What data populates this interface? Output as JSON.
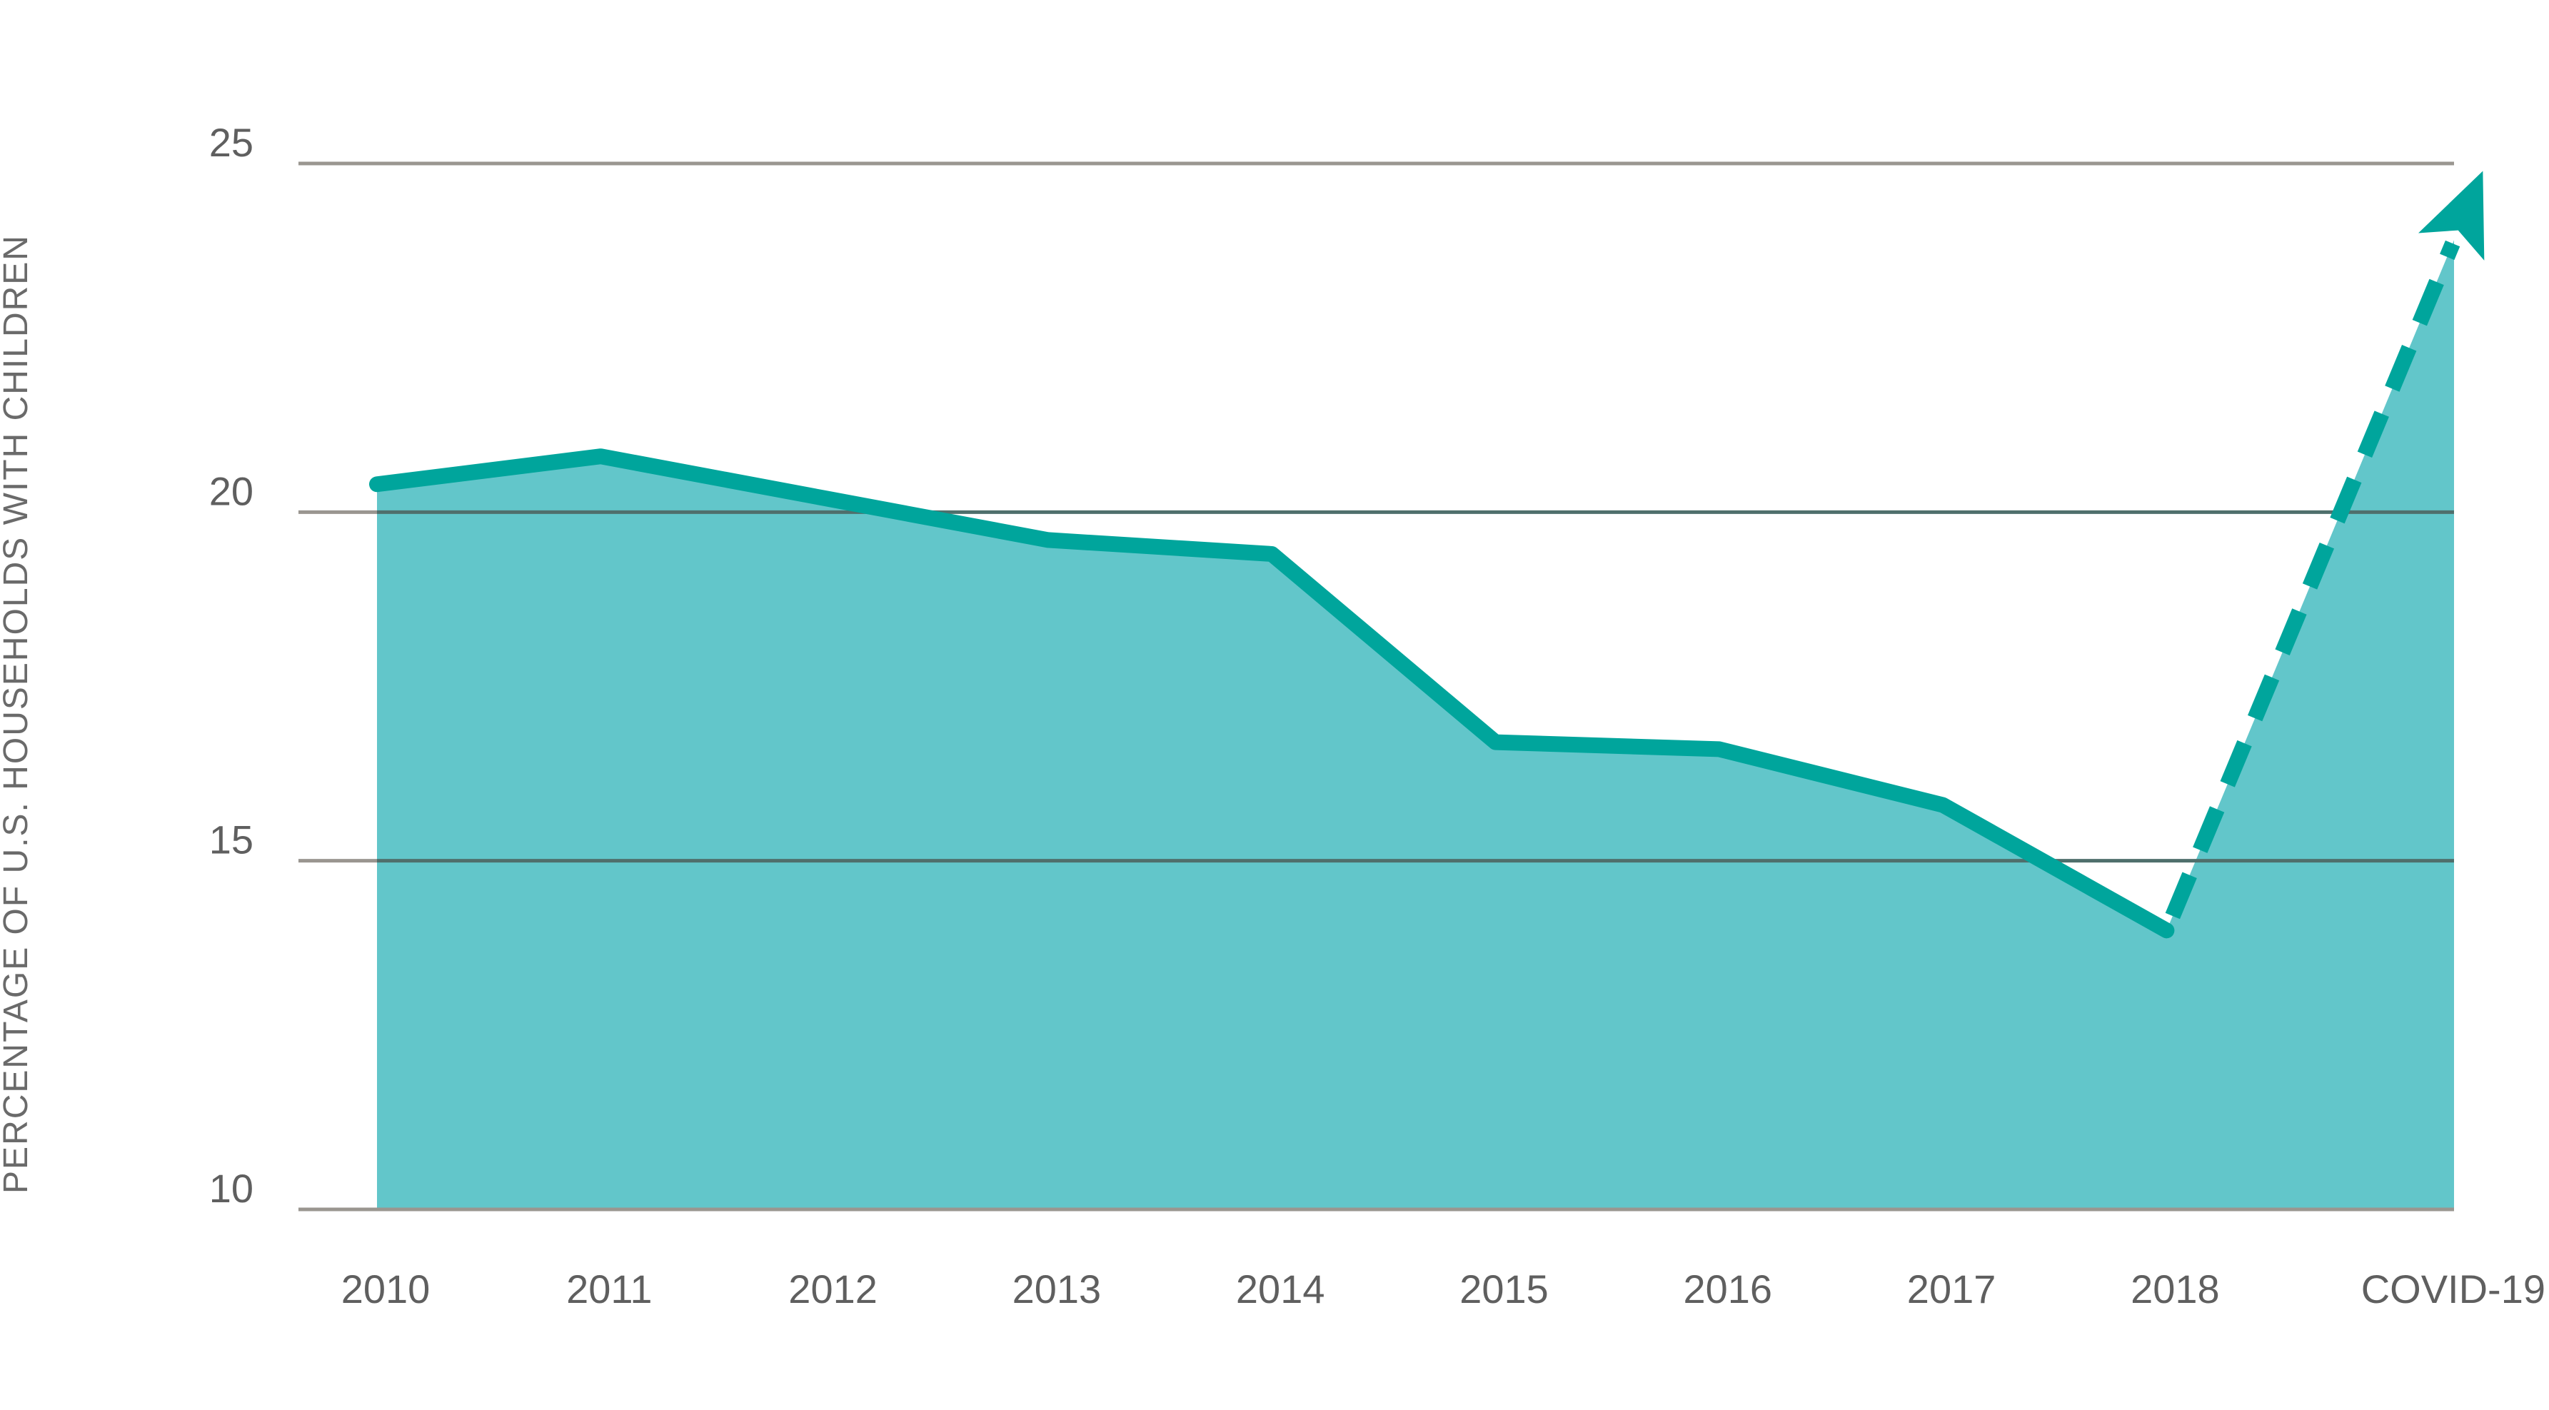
{
  "chart_data": {
    "type": "area",
    "ylabel": "PERCENTAGE OF U.S. HOUSEHOLDS WITH CHILDREN",
    "xlabel": "",
    "categories": [
      "2010",
      "2011",
      "2012",
      "2013",
      "2014",
      "2015",
      "2016",
      "2017",
      "2018",
      "COVID-19"
    ],
    "series": [
      {
        "values": [
          20.4,
          20.8,
          20.2,
          19.6,
          19.4,
          16.7,
          16.6,
          15.8,
          14.0,
          23.9
        ],
        "projected_from_index": 8
      }
    ],
    "yticks": [
      10,
      15,
      20,
      25
    ],
    "ylim": [
      10,
      25
    ],
    "grid": true,
    "legend": "none",
    "colors": {
      "area_fill": "#62c6ca",
      "line": "#00a59c",
      "grid_light": "#9a9690",
      "grid_dark": "#4f6f6c",
      "tick_text": "#5f5f5f"
    }
  }
}
